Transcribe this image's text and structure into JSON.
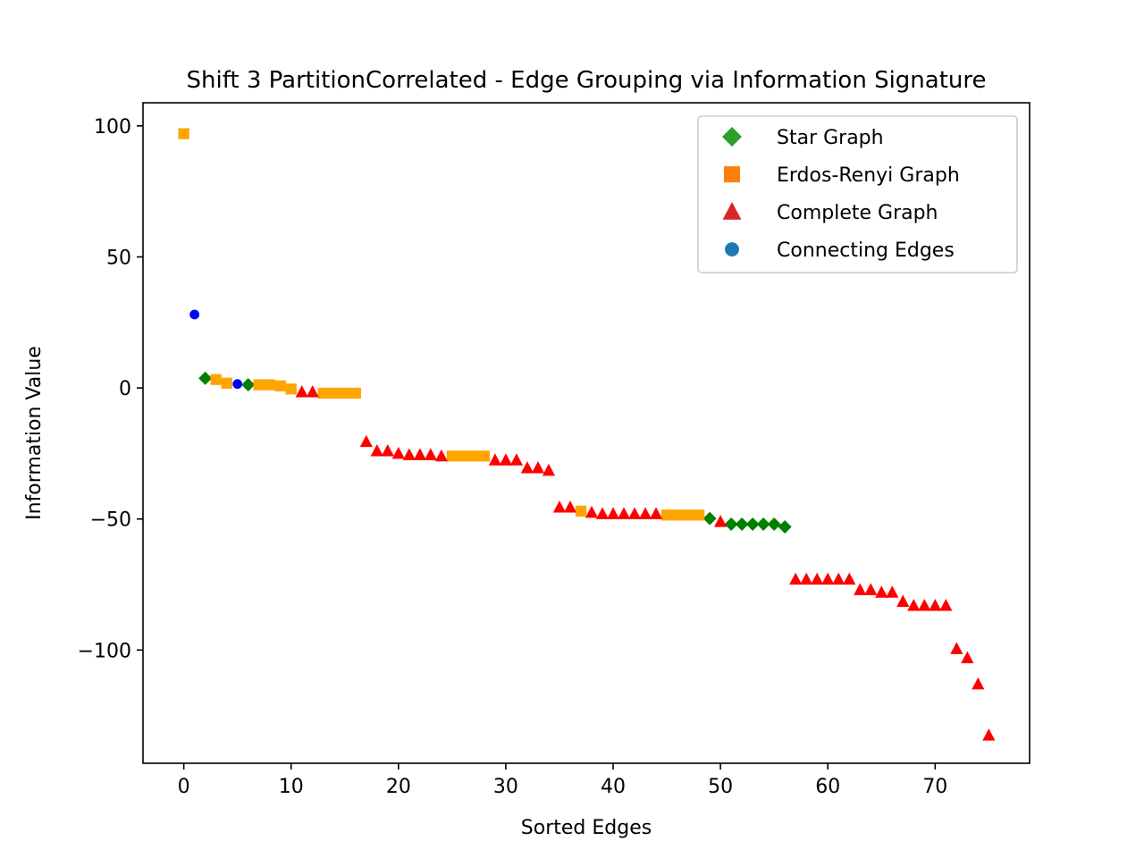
{
  "chart_data": {
    "type": "scatter",
    "title": "Shift 3 PartitionCorrelated - Edge Grouping via Information Signature",
    "xlabel": "Sorted Edges",
    "ylabel": "Information Value",
    "xlim": [
      -3.8,
      78.8
    ],
    "ylim": [
      -143.2,
      108.8
    ],
    "xticks": [
      0,
      10,
      20,
      30,
      40,
      50,
      60,
      70
    ],
    "xtick_labels": [
      "0",
      "10",
      "20",
      "30",
      "40",
      "50",
      "60",
      "70"
    ],
    "yticks": [
      100,
      50,
      0,
      -50,
      -100
    ],
    "ytick_labels": [
      "100",
      "50",
      "0",
      "−50",
      "−100"
    ],
    "grid": false,
    "legend_position": "top-right",
    "series": [
      {
        "name": "Star Graph",
        "marker": "diamond",
        "legend_color": "#2ca02c",
        "color": "#008000",
        "points": [
          [
            2,
            3.7
          ],
          [
            6,
            1.2
          ],
          [
            49,
            -49.8
          ],
          [
            51,
            -52
          ],
          [
            52,
            -52
          ],
          [
            53,
            -52
          ],
          [
            54,
            -52
          ],
          [
            55,
            -52
          ],
          [
            56,
            -53
          ]
        ]
      },
      {
        "name": "Erdos-Renyi Graph",
        "marker": "square",
        "legend_color": "#ff7f0e",
        "color": "#ffa500",
        "points": [
          [
            0,
            97
          ],
          [
            3,
            3.2
          ],
          [
            4,
            1.8
          ],
          [
            7,
            1.2
          ],
          [
            8,
            1.2
          ],
          [
            9,
            0.8
          ],
          [
            10,
            -0.4
          ],
          [
            13,
            -2
          ],
          [
            14,
            -2
          ],
          [
            15,
            -2
          ],
          [
            16,
            -2
          ],
          [
            25,
            -26
          ],
          [
            26,
            -26
          ],
          [
            27,
            -26
          ],
          [
            28,
            -26
          ],
          [
            37,
            -47
          ],
          [
            45,
            -48.5
          ],
          [
            46,
            -48.5
          ],
          [
            47,
            -48.5
          ],
          [
            48,
            -48.5
          ]
        ]
      },
      {
        "name": "Complete Graph",
        "marker": "triangle",
        "legend_color": "#d62728",
        "color": "#ff0000",
        "points": [
          [
            11,
            -1.5
          ],
          [
            12,
            -1.5
          ],
          [
            17,
            -20.5
          ],
          [
            18,
            -24
          ],
          [
            19,
            -24
          ],
          [
            20,
            -25
          ],
          [
            21,
            -25.5
          ],
          [
            22,
            -25.5
          ],
          [
            23,
            -25.5
          ],
          [
            24,
            -26
          ],
          [
            29,
            -27.5
          ],
          [
            30,
            -27.5
          ],
          [
            31,
            -27.5
          ],
          [
            32,
            -30.5
          ],
          [
            33,
            -30.5
          ],
          [
            34,
            -31.5
          ],
          [
            35,
            -45.5
          ],
          [
            36,
            -45.5
          ],
          [
            38,
            -47.5
          ],
          [
            39,
            -48
          ],
          [
            40,
            -48
          ],
          [
            41,
            -48
          ],
          [
            42,
            -48
          ],
          [
            43,
            -48
          ],
          [
            44,
            -48
          ],
          [
            50,
            -51
          ],
          [
            57,
            -73
          ],
          [
            58,
            -73
          ],
          [
            59,
            -73
          ],
          [
            60,
            -73
          ],
          [
            61,
            -73
          ],
          [
            62,
            -73
          ],
          [
            63,
            -77
          ],
          [
            64,
            -77
          ],
          [
            65,
            -78
          ],
          [
            66,
            -78
          ],
          [
            67,
            -81.5
          ],
          [
            68,
            -83
          ],
          [
            69,
            -83
          ],
          [
            70,
            -83
          ],
          [
            71,
            -83
          ],
          [
            72,
            -99.5
          ],
          [
            73,
            -103
          ],
          [
            74,
            -113
          ],
          [
            75,
            -132.5
          ]
        ]
      },
      {
        "name": "Connecting Edges",
        "marker": "circle",
        "legend_color": "#1f77b4",
        "color": "#0000ff",
        "points": [
          [
            1,
            28
          ],
          [
            5,
            1.5
          ]
        ]
      }
    ]
  }
}
